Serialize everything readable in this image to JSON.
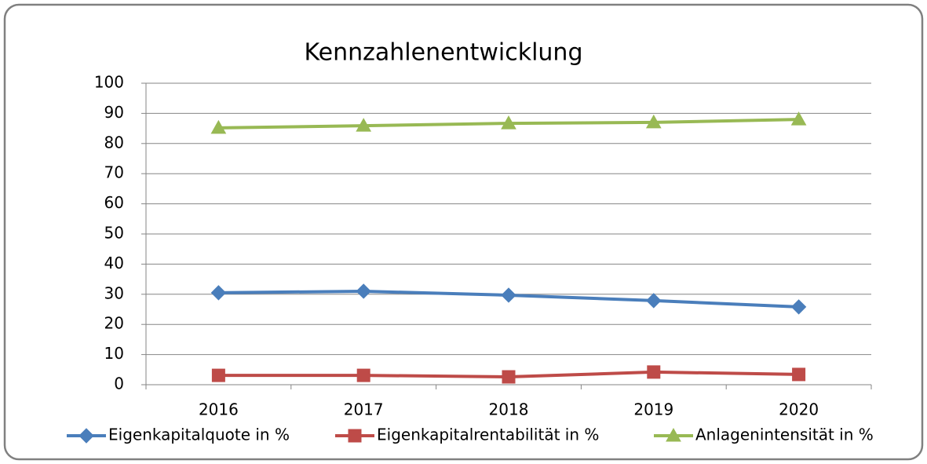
{
  "chart_data": {
    "type": "line",
    "title": "Kennzahlenentwicklung",
    "categories": [
      "2016",
      "2017",
      "2018",
      "2019",
      "2020"
    ],
    "series": [
      {
        "name": "Eigenkapitalquote in %",
        "color": "#4a7ebb",
        "values": [
          30.5,
          31,
          29.7,
          27.9,
          25.8
        ]
      },
      {
        "name": "Eigenkapitalrentabilität in %",
        "color": "#be4b48",
        "values": [
          3.1,
          3.1,
          2.6,
          4.2,
          3.4
        ]
      },
      {
        "name": "Anlagenintensität in %",
        "color": "#98b954",
        "values": [
          85.2,
          85.9,
          86.7,
          87,
          88
        ]
      }
    ],
    "ylim": [
      0,
      100
    ],
    "yticks": [
      0,
      10,
      20,
      30,
      40,
      50,
      60,
      70,
      80,
      90,
      100
    ],
    "grid": true,
    "legend": "bottom"
  }
}
